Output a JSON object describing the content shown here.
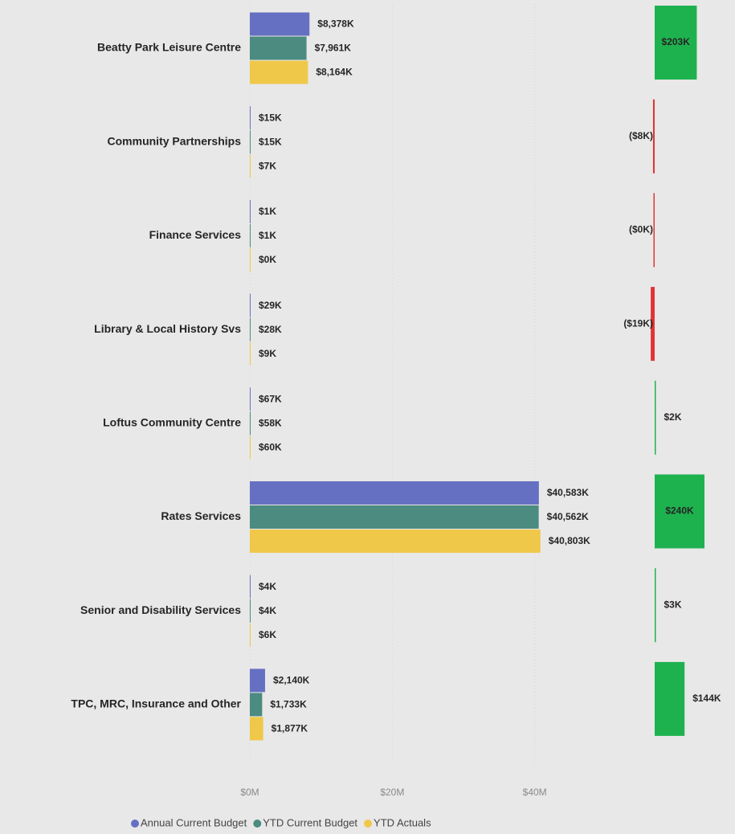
{
  "chart_data": [
    {
      "type": "bar",
      "orientation": "horizontal",
      "categories": [
        "Beatty Park Leisure Centre",
        "Community Partnerships",
        "Finance Services",
        "Library & Local History Svs",
        "Loftus Community Centre",
        "Rates Services",
        "Senior and Disability Services",
        "TPC, MRC, Insurance and Other"
      ],
      "series": [
        {
          "name": "Annual Current Budget",
          "color": "#6670c2",
          "values": [
            8378000,
            15000,
            1000,
            29000,
            67000,
            40583000,
            4000,
            2140000
          ],
          "value_labels": [
            "$8,378K",
            "$15K",
            "$1K",
            "$29K",
            "$67K",
            "$40,583K",
            "$4K",
            "$2,140K"
          ]
        },
        {
          "name": "YTD Current Budget",
          "color": "#4b8b80",
          "values": [
            7961000,
            15000,
            1000,
            28000,
            58000,
            40562000,
            4000,
            1733000
          ],
          "value_labels": [
            "$7,961K",
            "$15K",
            "$1K",
            "$28K",
            "$58K",
            "$40,562K",
            "$4K",
            "$1,733K"
          ]
        },
        {
          "name": "YTD Actuals",
          "color": "#efc84a",
          "values": [
            8164000,
            7000,
            400,
            9000,
            60000,
            40803000,
            6000,
            1877000
          ],
          "value_labels": [
            "$8,164K",
            "$7K",
            "$0K",
            "$9K",
            "$60K",
            "$40,803K",
            "$6K",
            "$1,877K"
          ]
        }
      ],
      "xlim": [
        0,
        45000000
      ],
      "xticks": [
        {
          "value": 0,
          "label": "$0M"
        },
        {
          "value": 20000000,
          "label": "$20M"
        },
        {
          "value": 40000000,
          "label": "$40M"
        }
      ],
      "grid": true,
      "legend": "bottom"
    },
    {
      "type": "variance",
      "values": [
        203,
        -8,
        -0.3,
        -19,
        2,
        240,
        3,
        144
      ],
      "value_labels": [
        "$203K",
        "($8K)",
        "($0K)",
        "($19K)",
        "$2K",
        "$240K",
        "$3K",
        "$144K"
      ],
      "positive_color": "#1eb24f",
      "negative_color": "#e23434"
    }
  ]
}
